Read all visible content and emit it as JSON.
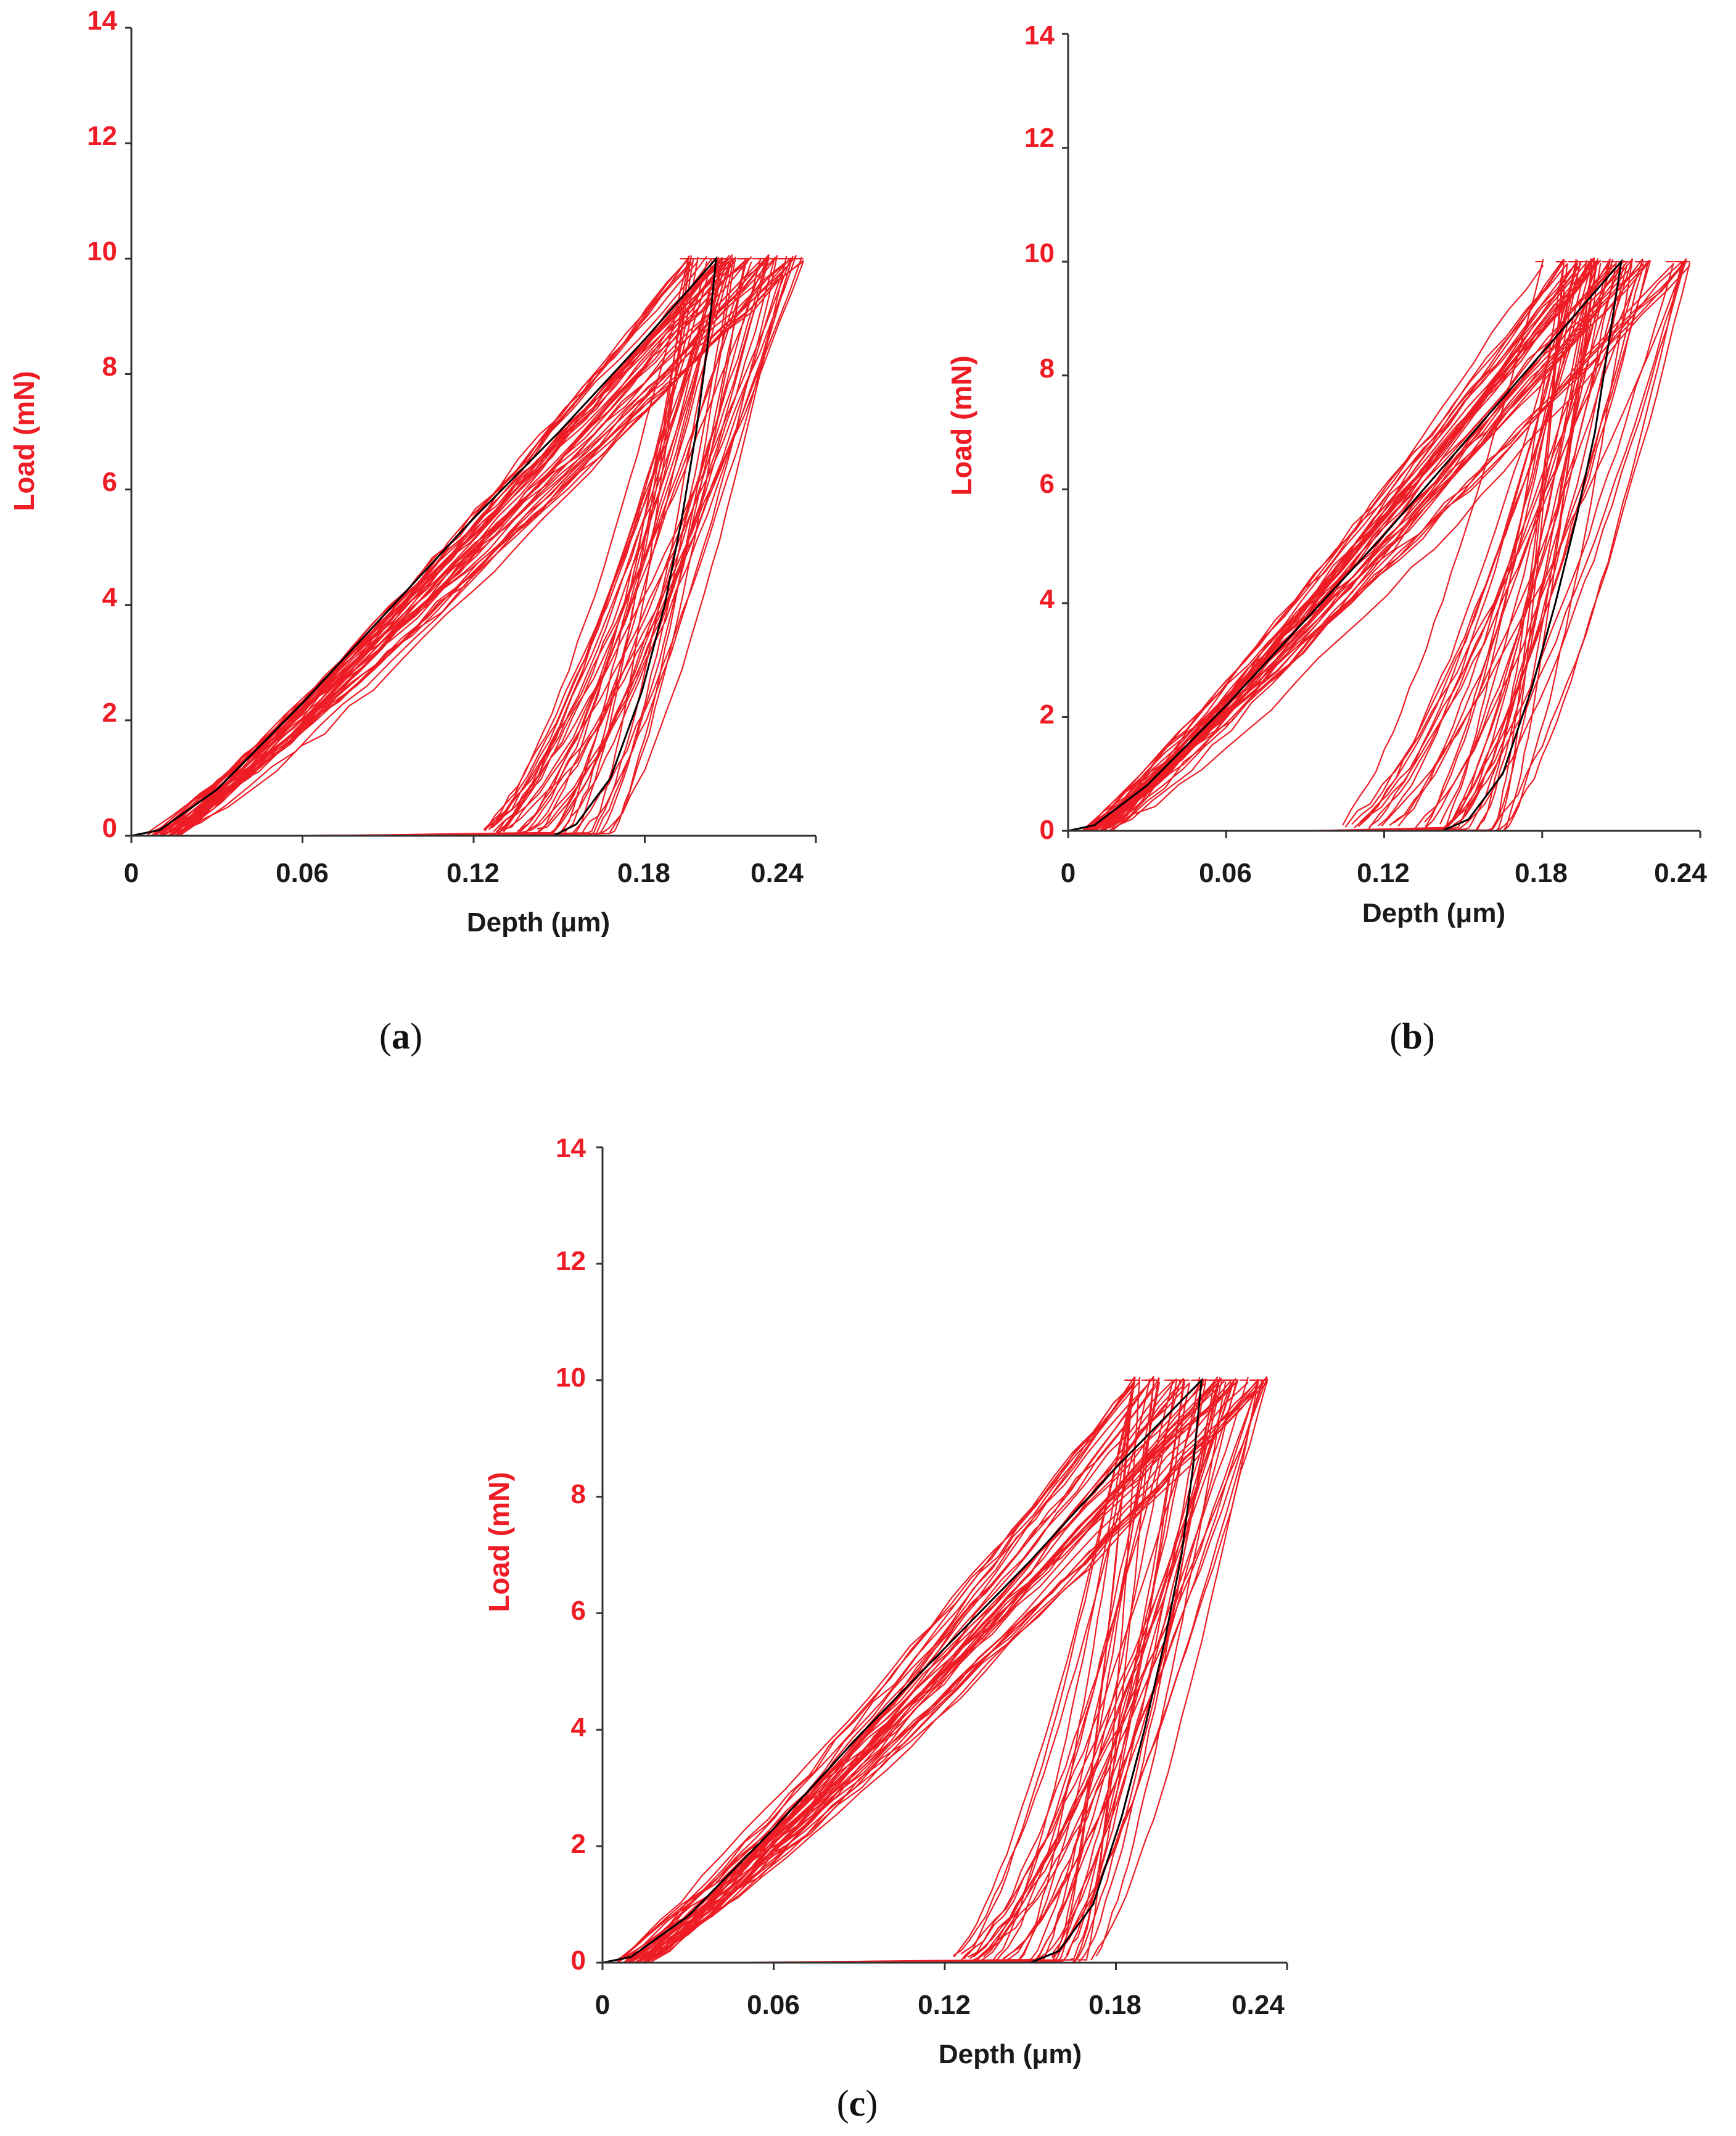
{
  "colors": {
    "accent": "#ee1c25",
    "mean_curve": "#000000",
    "axis": "#333333"
  },
  "chart_data": [
    {
      "type": "line",
      "panel": "a",
      "panel_label": {
        "open": "(",
        "letter": "a",
        "close": ")"
      },
      "xlabel": "Depth (μm)",
      "ylabel": "Load (mN)",
      "xlim": [
        0,
        0.24
      ],
      "ylim": [
        0,
        14
      ],
      "x_ticks": [
        "0",
        "0.06",
        "0.12",
        "0.18",
        "0.24"
      ],
      "y_ticks": [
        "0",
        "2",
        "4",
        "6",
        "8",
        "10",
        "12",
        "14"
      ],
      "grid": false,
      "loading_curves": {
        "count": 40,
        "max_load": 10,
        "hmax_range": [
          0.195,
          0.236
        ]
      },
      "unloading_curves": {
        "count": 40,
        "hf_range": [
          0.118,
          0.17
        ],
        "hmax_range": [
          0.195,
          0.236
        ]
      },
      "mean_curve": {
        "loading": {
          "x": [
            0.0,
            0.01,
            0.03,
            0.06,
            0.09,
            0.12,
            0.15,
            0.18,
            0.205
          ],
          "y": [
            0.0,
            0.1,
            0.8,
            2.3,
            3.9,
            5.5,
            7.0,
            8.6,
            10.0
          ]
        },
        "unloading": {
          "x": [
            0.205,
            0.202,
            0.198,
            0.193,
            0.187,
            0.179,
            0.168,
            0.156,
            0.148
          ],
          "y": [
            10.0,
            8.5,
            7.0,
            5.5,
            4.0,
            2.5,
            1.0,
            0.2,
            0.0
          ]
        }
      }
    },
    {
      "type": "line",
      "panel": "b",
      "panel_label": {
        "open": "(",
        "letter": "b",
        "close": ")"
      },
      "xlabel": "Depth (μm)",
      "ylabel": "Load (mN)",
      "xlim": [
        0,
        0.24
      ],
      "ylim": [
        0,
        14
      ],
      "x_ticks": [
        "0",
        "0.06",
        "0.12",
        "0.18",
        "0.24"
      ],
      "y_ticks": [
        "0",
        "2",
        "4",
        "6",
        "8",
        "10",
        "12",
        "14"
      ],
      "grid": false,
      "loading_curves": {
        "count": 40,
        "max_load": 10,
        "hmax_range": [
          0.18,
          0.238
        ]
      },
      "unloading_curves": {
        "count": 40,
        "hf_range": [
          0.1,
          0.168
        ],
        "hmax_range": [
          0.18,
          0.238
        ]
      },
      "mean_curve": {
        "loading": {
          "x": [
            0.0,
            0.01,
            0.03,
            0.06,
            0.09,
            0.12,
            0.15,
            0.18,
            0.21
          ],
          "y": [
            0.0,
            0.1,
            0.8,
            2.2,
            3.7,
            5.2,
            6.8,
            8.4,
            10.0
          ]
        },
        "unloading": {
          "x": [
            0.21,
            0.205,
            0.2,
            0.193,
            0.185,
            0.176,
            0.165,
            0.152,
            0.142
          ],
          "y": [
            10.0,
            8.5,
            7.0,
            5.5,
            4.0,
            2.5,
            1.0,
            0.2,
            0.0
          ]
        }
      }
    },
    {
      "type": "line",
      "panel": "c",
      "panel_label": {
        "open": "(",
        "letter": "c",
        "close": ")"
      },
      "xlabel": "Depth (μm)",
      "ylabel": "Load (mN)",
      "xlim": [
        0,
        0.24
      ],
      "ylim": [
        0,
        14
      ],
      "x_ticks": [
        "0",
        "0.06",
        "0.12",
        "0.18",
        "0.24"
      ],
      "y_ticks": [
        "0",
        "2",
        "4",
        "6",
        "8",
        "10",
        "12",
        "14"
      ],
      "grid": false,
      "loading_curves": {
        "count": 40,
        "max_load": 10,
        "hmax_range": [
          0.185,
          0.235
        ]
      },
      "unloading_curves": {
        "count": 40,
        "hf_range": [
          0.12,
          0.172
        ],
        "hmax_range": [
          0.185,
          0.235
        ]
      },
      "mean_curve": {
        "loading": {
          "x": [
            0.0,
            0.01,
            0.03,
            0.06,
            0.09,
            0.12,
            0.15,
            0.18,
            0.21
          ],
          "y": [
            0.0,
            0.1,
            0.8,
            2.3,
            3.9,
            5.4,
            6.9,
            8.5,
            10.0
          ]
        },
        "unloading": {
          "x": [
            0.21,
            0.207,
            0.203,
            0.197,
            0.19,
            0.182,
            0.172,
            0.16,
            0.15
          ],
          "y": [
            10.0,
            8.5,
            7.0,
            5.5,
            4.0,
            2.5,
            1.0,
            0.2,
            0.0
          ]
        }
      }
    }
  ]
}
